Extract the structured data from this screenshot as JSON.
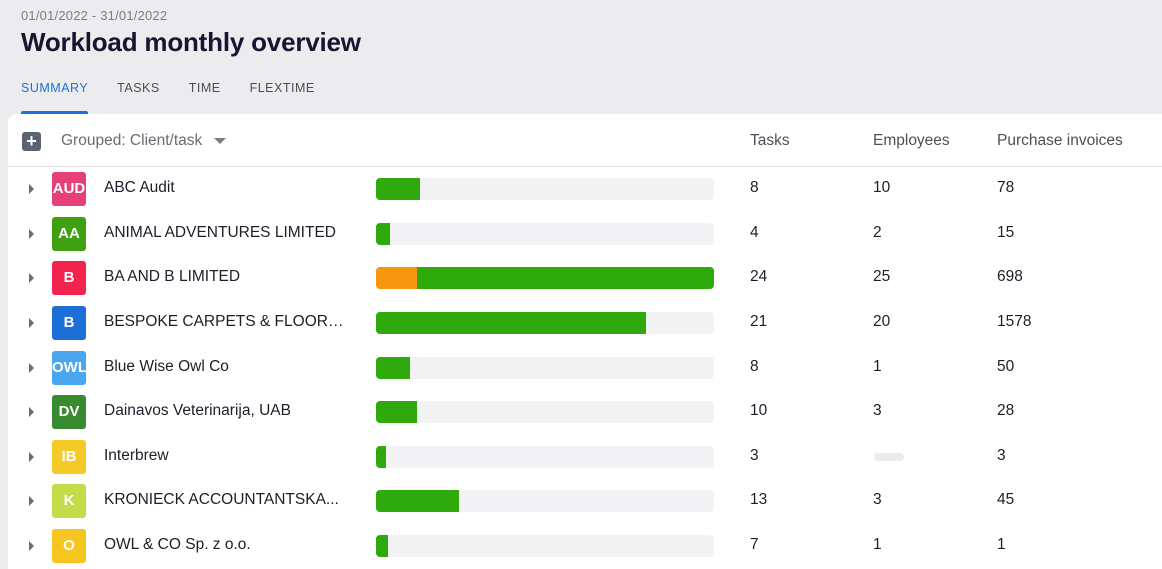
{
  "header": {
    "date_range": "01/01/2022 - 31/01/2022",
    "title": "Workload monthly overview"
  },
  "tabs": [
    {
      "label": "SUMMARY",
      "active": true
    },
    {
      "label": "TASKS",
      "active": false
    },
    {
      "label": "TIME",
      "active": false
    },
    {
      "label": "FLEXTIME",
      "active": false
    }
  ],
  "table": {
    "add_icon": "plus-icon",
    "grouped_label": "Grouped: Client/task",
    "columns": {
      "tasks": "Tasks",
      "employees": "Employees",
      "purchase_invoices": "Purchase invoices"
    },
    "colors": {
      "green": "#2eaa0c",
      "orange": "#f7960f"
    },
    "rows": [
      {
        "initials": "AUD",
        "avatar_color": "#e5407a",
        "name": "ABC Audit",
        "progress": [
          {
            "color": "#2eaa0c",
            "fraction": 0.13
          }
        ],
        "tasks": "8",
        "employees": "10",
        "purchase_invoices": "78"
      },
      {
        "initials": "AA",
        "avatar_color": "#3fa112",
        "name": "ANIMAL ADVENTURES LIMITED",
        "progress": [
          {
            "color": "#2eaa0c",
            "fraction": 0.04
          }
        ],
        "tasks": "4",
        "employees": "2",
        "purchase_invoices": "15"
      },
      {
        "initials": "B",
        "avatar_color": "#f0244d",
        "name": "BA AND B LIMITED",
        "progress": [
          {
            "color": "#f7960f",
            "fraction": 0.12
          },
          {
            "color": "#2eaa0c",
            "fraction": 0.88
          }
        ],
        "tasks": "24",
        "employees": "25",
        "purchase_invoices": "698"
      },
      {
        "initials": "B",
        "avatar_color": "#1d6fd8",
        "name": "BESPOKE CARPETS & FLOORI...",
        "progress": [
          {
            "color": "#2eaa0c",
            "fraction": 0.8
          }
        ],
        "tasks": "21",
        "employees": "20",
        "purchase_invoices": "1578"
      },
      {
        "initials": "OWL",
        "avatar_color": "#4aa6ee",
        "name": "Blue Wise Owl Co",
        "progress": [
          {
            "color": "#2eaa0c",
            "fraction": 0.1
          }
        ],
        "tasks": "8",
        "employees": "1",
        "purchase_invoices": "50"
      },
      {
        "initials": "DV",
        "avatar_color": "#3a8a2f",
        "name": "Dainavos Veterinarija, UAB",
        "progress": [
          {
            "color": "#2eaa0c",
            "fraction": 0.12
          }
        ],
        "tasks": "10",
        "employees": "3",
        "purchase_invoices": "28"
      },
      {
        "initials": "IB",
        "avatar_color": "#f5c928",
        "name": "Interbrew",
        "progress": [
          {
            "color": "#2eaa0c",
            "fraction": 0.03
          }
        ],
        "tasks": "3",
        "employees": "",
        "purchase_invoices": "3"
      },
      {
        "initials": "K",
        "avatar_color": "#c3dc4a",
        "name": "KRONIECK ACCOUNTANTSKA...",
        "progress": [
          {
            "color": "#2eaa0c",
            "fraction": 0.245
          }
        ],
        "tasks": "13",
        "employees": "3",
        "purchase_invoices": "45"
      },
      {
        "initials": "O",
        "avatar_color": "#f5c520",
        "name": "OWL & CO Sp. z o.o.",
        "progress": [
          {
            "color": "#2eaa0c",
            "fraction": 0.035
          }
        ],
        "tasks": "7",
        "employees": "1",
        "purchase_invoices": "1"
      }
    ]
  }
}
